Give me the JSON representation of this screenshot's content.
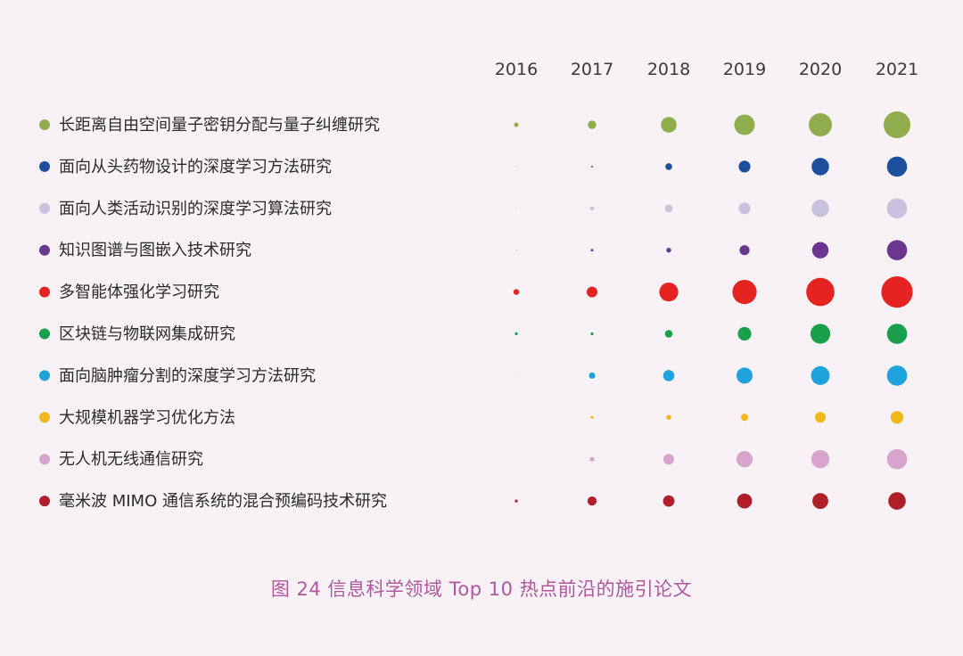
{
  "chart_data": {
    "type": "bubble-grid",
    "years": [
      "2016",
      "2017",
      "2018",
      "2019",
      "2020",
      "2021"
    ],
    "size_ratios": [
      0.2,
      0.35,
      0.65,
      0.85,
      1.0,
      1.12
    ],
    "series": [
      {
        "name": "长距离自由空间量子密钥分配与量子纠缠研究",
        "color": "#8fad4d",
        "values": [
          2.5,
          4.7,
          8.8,
          11.5,
          13.0,
          15.0
        ]
      },
      {
        "name": "面向从头药物设计的深度学习方法研究",
        "color": "#1e4f9e",
        "values": [
          0.3,
          1.0,
          3.8,
          6.6,
          9.8,
          11.3
        ]
      },
      {
        "name": "面向人类活动识别的深度学习算法研究",
        "color": "#c7c2dd",
        "values": [
          0.3,
          2.3,
          4.3,
          6.6,
          9.8,
          11.3
        ]
      },
      {
        "name": "知识图谱与图嵌入技术研究",
        "color": "#6a3690",
        "values": [
          0.3,
          1.5,
          2.7,
          5.6,
          9.2,
          11.3
        ]
      },
      {
        "name": "多智能体强化学习研究",
        "color": "#e52320",
        "values": [
          3.2,
          6.0,
          10.6,
          13.6,
          15.8,
          17.6
        ]
      },
      {
        "name": "区块链与物联网集成研究",
        "color": "#1aa04a",
        "values": [
          1.6,
          1.6,
          4.3,
          7.6,
          11.1,
          11.3
        ]
      },
      {
        "name": "面向脑肿瘤分割的深度学习方法研究",
        "color": "#1fa3dc",
        "values": [
          0.3,
          3.5,
          6.3,
          9.0,
          10.5,
          11.3
        ]
      },
      {
        "name": "大规模机器学习优化方法",
        "color": "#f2b81b",
        "values": [
          0.3,
          1.6,
          2.8,
          4.0,
          6.0,
          7.1
        ]
      },
      {
        "name": "无人机无线通信研究",
        "color": "#d8a3cd",
        "values": [
          0.3,
          2.6,
          6.0,
          9.1,
          10.2,
          11.3
        ]
      },
      {
        "name": "毫米波 MIMO 通信系统的混合预编码技术研究",
        "color": "#b01e2a",
        "values": [
          1.6,
          5.1,
          6.4,
          8.4,
          8.9,
          9.8
        ]
      }
    ]
  },
  "caption": "图 24  信息科学领域 Top 10 热点前沿的施引论文"
}
